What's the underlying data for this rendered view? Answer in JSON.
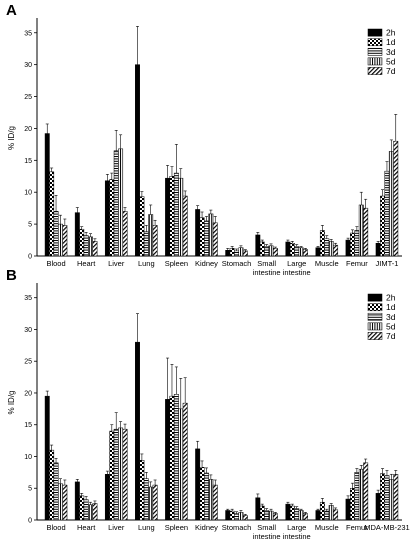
{
  "legend": [
    "2h",
    "1d",
    "3d",
    "5d",
    "7d"
  ],
  "chart_data": [
    {
      "type": "bar",
      "panel": "A",
      "ylabel": "% ID/g",
      "ylim": [
        0,
        37
      ],
      "yticks": [
        0,
        5,
        10,
        15,
        20,
        25,
        30,
        35
      ],
      "categories": [
        "Blood",
        "Heart",
        "Liver",
        "Lung",
        "Spleen",
        "Kidney",
        "Stomach",
        "Small intestine",
        "Large intestine",
        "Muscle",
        "Femur",
        "JIMT-1"
      ],
      "series": [
        {
          "name": "2h",
          "values": [
            19.2,
            6.8,
            11.8,
            30.0,
            12.2,
            7.3,
            0.9,
            3.3,
            2.2,
            1.3,
            2.5,
            2.0
          ],
          "errors": [
            1.5,
            0.8,
            1.0,
            6.0,
            2.0,
            0.6,
            0.3,
            0.4,
            0.3,
            0.2,
            0.3,
            0.3
          ]
        },
        {
          "name": "1d",
          "values": [
            13.2,
            4.2,
            12.0,
            9.3,
            12.5,
            6.0,
            1.2,
            2.2,
            2.0,
            4.0,
            3.6,
            9.4
          ],
          "errors": [
            0.6,
            0.4,
            1.0,
            0.8,
            1.5,
            0.9,
            0.3,
            0.3,
            0.3,
            0.8,
            0.5,
            1.0
          ]
        },
        {
          "name": "3d",
          "values": [
            7.0,
            3.2,
            16.5,
            3.8,
            13.0,
            5.5,
            0.8,
            1.5,
            1.5,
            2.7,
            4.0,
            13.3
          ],
          "errors": [
            2.5,
            0.5,
            3.2,
            1.0,
            4.5,
            0.7,
            0.3,
            0.3,
            0.3,
            0.5,
            0.6,
            1.5
          ]
        },
        {
          "name": "5d",
          "values": [
            5.0,
            3.0,
            16.8,
            6.5,
            12.2,
            6.6,
            1.3,
            1.6,
            1.3,
            2.3,
            8.0,
            16.4
          ],
          "errors": [
            1.4,
            0.5,
            2.2,
            1.5,
            1.5,
            0.6,
            0.3,
            0.3,
            0.2,
            0.3,
            2.0,
            1.8
          ]
        },
        {
          "name": "7d",
          "values": [
            4.8,
            2.3,
            7.0,
            4.8,
            9.4,
            5.2,
            0.8,
            1.2,
            1.0,
            1.7,
            7.5,
            18.0
          ],
          "errors": [
            1.0,
            0.4,
            0.6,
            0.8,
            0.8,
            1.0,
            0.2,
            0.2,
            0.2,
            0.3,
            1.4,
            4.2
          ]
        }
      ]
    },
    {
      "type": "bar",
      "panel": "B",
      "ylabel": "% ID/g",
      "ylim": [
        0,
        37
      ],
      "yticks": [
        0,
        5,
        10,
        15,
        20,
        25,
        30,
        35
      ],
      "categories": [
        "Blood",
        "Heart",
        "Liver",
        "Lung",
        "Spleen",
        "Kidney",
        "Stomach",
        "Small intestine",
        "Large intestine",
        "Muscle",
        "Femur",
        "MDA-MB-231"
      ],
      "series": [
        {
          "name": "2h",
          "values": [
            19.5,
            6.0,
            7.2,
            28.0,
            19.0,
            11.2,
            1.5,
            3.5,
            2.5,
            1.5,
            3.3,
            4.2
          ],
          "errors": [
            0.8,
            0.4,
            0.5,
            4.5,
            6.5,
            1.2,
            0.2,
            0.6,
            0.3,
            0.2,
            0.5,
            0.5
          ]
        },
        {
          "name": "1d",
          "values": [
            11.0,
            3.8,
            14.0,
            9.4,
            19.5,
            8.3,
            1.4,
            2.2,
            2.2,
            2.8,
            5.0,
            7.3
          ],
          "errors": [
            0.8,
            0.4,
            1.0,
            1.0,
            5.0,
            1.0,
            0.3,
            0.3,
            0.3,
            0.6,
            0.8,
            0.8
          ]
        },
        {
          "name": "3d",
          "values": [
            9.0,
            3.2,
            14.3,
            6.5,
            19.8,
            7.4,
            1.0,
            1.5,
            1.8,
            1.4,
            7.5,
            7.0
          ],
          "errors": [
            0.7,
            0.5,
            2.6,
            1.0,
            4.3,
            0.8,
            0.3,
            0.3,
            0.3,
            0.3,
            0.6,
            0.8
          ]
        },
        {
          "name": "5d",
          "values": [
            5.7,
            2.4,
            14.5,
            5.2,
            17.5,
            6.4,
            1.2,
            1.4,
            1.5,
            2.3,
            8.0,
            6.4
          ],
          "errors": [
            0.8,
            0.4,
            1.0,
            0.8,
            4.8,
            0.7,
            0.3,
            0.3,
            0.2,
            0.3,
            0.6,
            0.8
          ]
        },
        {
          "name": "7d",
          "values": [
            5.5,
            2.6,
            14.3,
            5.5,
            18.4,
            5.5,
            0.7,
            1.0,
            1.0,
            1.6,
            9.0,
            7.2
          ],
          "errors": [
            0.8,
            0.4,
            0.8,
            0.8,
            4.0,
            0.8,
            0.2,
            0.2,
            0.2,
            0.3,
            0.6,
            0.6
          ]
        }
      ]
    }
  ]
}
